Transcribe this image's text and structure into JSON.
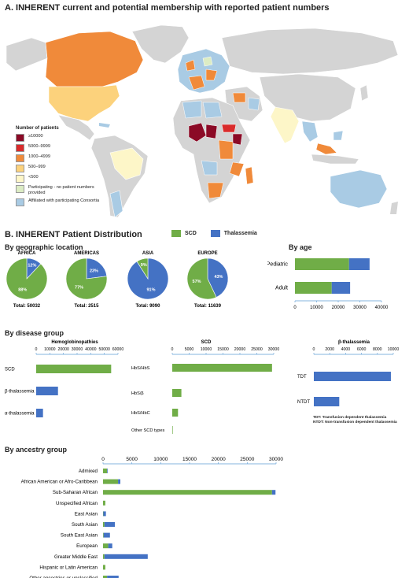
{
  "panelA": {
    "title": "A. INHERENT current and potential membership with reported patient numbers",
    "legend_title": "Number of patients",
    "legend": [
      {
        "label": "≥10000",
        "color": "#8b0a26"
      },
      {
        "label": "5000–9999",
        "color": "#d92b2b"
      },
      {
        "label": "1000–4999",
        "color": "#f08a3a"
      },
      {
        "label": "500–999",
        "color": "#fcd27c"
      },
      {
        "label": "<500",
        "color": "#fdf6c8"
      },
      {
        "label": "Participating - no patient numbers provided",
        "color": "#dcecc4"
      },
      {
        "label": "Affiliated with participating Consortia",
        "color": "#a9cbe4"
      }
    ]
  },
  "panelB": {
    "title": "B. INHERENT Patient Distribution",
    "legend": [
      {
        "label": "SCD",
        "color": "#70ad47"
      },
      {
        "label": "Thalassemia",
        "color": "#4472c4"
      }
    ],
    "geo_title": "By geographic location",
    "age_title": "By age",
    "disease_title": "By disease group",
    "ancestry_title": "By ancestry group",
    "tdt_note1": "TDT: Transfusion dependent thalassemia",
    "tdt_note2": "NTDT: Non-transfusion dependent thalassemia"
  },
  "colors": {
    "scd": "#70ad47",
    "thal": "#4472c4",
    "axis": "#5b9bd5"
  },
  "chart_data": [
    {
      "type": "pie",
      "title": "AFRICA",
      "slices": [
        {
          "name": "SCD",
          "value": 88,
          "label": "88%"
        },
        {
          "name": "Thalassemia",
          "value": 12,
          "label": "12%"
        }
      ],
      "total": "Total: 50032"
    },
    {
      "type": "pie",
      "title": "AMERICAS",
      "slices": [
        {
          "name": "SCD",
          "value": 77,
          "label": "77%"
        },
        {
          "name": "Thalassemia",
          "value": 23,
          "label": "23%"
        }
      ],
      "total": "Total: 2515"
    },
    {
      "type": "pie",
      "title": "ASIA",
      "slices": [
        {
          "name": "SCD",
          "value": 9,
          "label": "9%"
        },
        {
          "name": "Thalassemia",
          "value": 91,
          "label": "91%"
        }
      ],
      "total": "Total: 9090"
    },
    {
      "type": "pie",
      "title": "EUROPE",
      "slices": [
        {
          "name": "SCD",
          "value": 57,
          "label": "57%"
        },
        {
          "name": "Thalassemia",
          "value": 43,
          "label": "43%"
        }
      ],
      "total": "Total: 11639"
    },
    {
      "type": "bar",
      "orientation": "horizontal",
      "stacked": true,
      "categories": [
        "Pediatric",
        "Adult"
      ],
      "series": [
        {
          "name": "SCD",
          "values": [
            25000,
            17000
          ]
        },
        {
          "name": "Thalassemia",
          "values": [
            9500,
            8500
          ]
        }
      ],
      "xlim": [
        0,
        40000
      ],
      "xticks": [
        "0",
        "10000",
        "20000",
        "30000",
        "40000"
      ]
    },
    {
      "type": "bar",
      "orientation": "horizontal",
      "title": "Hemoglobinopathies",
      "categories": [
        "SCD",
        "β-thalassemia",
        "α-thalassemia"
      ],
      "values": [
        55000,
        16000,
        5000
      ],
      "colors": [
        "#70ad47",
        "#4472c4",
        "#4472c4"
      ],
      "xlim": [
        0,
        60000
      ],
      "xticks": [
        "0",
        "10000",
        "20000",
        "30000",
        "40000",
        "50000",
        "60000"
      ]
    },
    {
      "type": "bar",
      "orientation": "horizontal",
      "title": "SCD",
      "categories": [
        "HbS/HbS",
        "HbS/β",
        "HbS/HbC",
        "Other SCD types"
      ],
      "values": [
        29500,
        2700,
        1700,
        150
      ],
      "xlim": [
        0,
        30000
      ],
      "xticks": [
        "0",
        "5000",
        "10000",
        "15000",
        "20000",
        "25000",
        "30000"
      ]
    },
    {
      "type": "bar",
      "orientation": "horizontal",
      "title": "β-thalassemia",
      "categories": [
        "TDT",
        "NTDT"
      ],
      "values": [
        9700,
        3200
      ],
      "xlim": [
        0,
        10000
      ],
      "xticks": [
        "0",
        "2000",
        "4000",
        "6000",
        "8000",
        "10000"
      ]
    },
    {
      "type": "bar",
      "orientation": "horizontal",
      "stacked": true,
      "categories": [
        "Admixed",
        "African American or Afro-Caribbean",
        "Sub-Saharan African",
        "Unspecified African",
        "East Asian",
        "South Asian",
        "South East Asian",
        "European",
        "Greater Middle East",
        "Hispanic or Latin American",
        "Other ancestries or unclassified"
      ],
      "series": [
        {
          "name": "SCD",
          "values": [
            700,
            2600,
            29300,
            400,
            50,
            250,
            100,
            900,
            250,
            400,
            700
          ]
        },
        {
          "name": "Thalassemia",
          "values": [
            100,
            400,
            600,
            0,
            450,
            1800,
            1100,
            700,
            7500,
            0,
            2000
          ]
        }
      ],
      "xlim": [
        0,
        30000
      ],
      "xticks": [
        "0",
        "5000",
        "10000",
        "15000",
        "20000",
        "25000",
        "30000"
      ]
    }
  ]
}
